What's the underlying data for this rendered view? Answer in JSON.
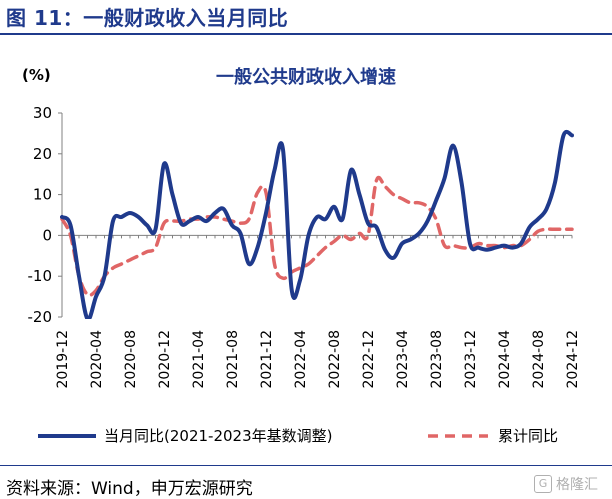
{
  "figure_title": "图 11：一般财政收入当月同比",
  "source": "资料来源：Wind，申万宏源研究",
  "watermark": "格隆汇",
  "watermark_icon": "G",
  "colors": {
    "series1": "#1f3a8c",
    "series2": "#e06666",
    "title": "#1f3a8c"
  },
  "chart_data": {
    "type": "line",
    "title": "一般公共财政收入增速",
    "ylabel": "(%)",
    "xlabel": "",
    "ylim": [
      -20,
      30
    ],
    "yticks": [
      -20,
      -10,
      0,
      10,
      20,
      30
    ],
    "grid": false,
    "legend_position": "bottom",
    "x_tick_labels": [
      "2019-12",
      "2020-04",
      "2020-08",
      "2020-12",
      "2021-04",
      "2021-08",
      "2021-12",
      "2022-04",
      "2022-08",
      "2022-12",
      "2023-04",
      "2023-08",
      "2023-12",
      "2024-04",
      "2024-08",
      "2024-12"
    ],
    "x": [
      "2019-12",
      "2020-01",
      "2020-02",
      "2020-03",
      "2020-04",
      "2020-05",
      "2020-06",
      "2020-07",
      "2020-08",
      "2020-09",
      "2020-10",
      "2020-11",
      "2020-12",
      "2021-01",
      "2021-02",
      "2021-03",
      "2021-04",
      "2021-05",
      "2021-06",
      "2021-07",
      "2021-08",
      "2021-09",
      "2021-10",
      "2021-11",
      "2021-12",
      "2022-01",
      "2022-02",
      "2022-03",
      "2022-04",
      "2022-05",
      "2022-06",
      "2022-07",
      "2022-08",
      "2022-09",
      "2022-10",
      "2022-11",
      "2022-12",
      "2023-01",
      "2023-02",
      "2023-03",
      "2023-04",
      "2023-05",
      "2023-06",
      "2023-07",
      "2023-08",
      "2023-09",
      "2023-10",
      "2023-11",
      "2023-12",
      "2024-01",
      "2024-02",
      "2024-03",
      "2024-04",
      "2024-05",
      "2024-06",
      "2024-07",
      "2024-08",
      "2024-09",
      "2024-10",
      "2024-11",
      "2024-12"
    ],
    "series": [
      {
        "name": "当月同比(2021-2023年基数调整)",
        "style": "solid",
        "values": [
          4.5,
          2.5,
          -10,
          -20.5,
          -15,
          -10,
          3.5,
          4.5,
          5.5,
          4.5,
          2.5,
          1.5,
          17.5,
          10,
          3,
          3.5,
          4.5,
          3.5,
          5.5,
          6.5,
          2.5,
          0.5,
          -7,
          -3,
          5.5,
          16,
          21,
          -13,
          -11,
          0,
          4.5,
          4,
          7,
          4,
          16,
          10,
          3,
          2,
          -3.5,
          -5.5,
          -2,
          -1,
          0.5,
          3.5,
          8.5,
          14,
          22,
          13,
          -2,
          -3,
          -3.5,
          -3,
          -2.5,
          -3,
          -2,
          2,
          4,
          6.5,
          13,
          24.5,
          24.5
        ]
      },
      {
        "name": "累计同比",
        "style": "dashed",
        "values": [
          4,
          0,
          -10,
          -14.5,
          -13.5,
          -10,
          -8,
          -7,
          -6,
          -5,
          -4,
          -3,
          3,
          3.5,
          3.5,
          4,
          4,
          4.5,
          4.5,
          4,
          3.5,
          3,
          4,
          10.5,
          10.5,
          -7,
          -10.5,
          -9,
          -8,
          -7,
          -5,
          -3,
          -1.5,
          0,
          -1,
          0.5,
          0,
          13.5,
          12,
          10,
          9,
          8,
          8,
          7,
          4,
          -2.5,
          -2.5,
          -3,
          -3,
          -2,
          -2.5,
          -2.5,
          -3,
          -2.5,
          -2.5,
          -1,
          1,
          1.5,
          1.5,
          1.5,
          1.5
        ]
      }
    ]
  }
}
